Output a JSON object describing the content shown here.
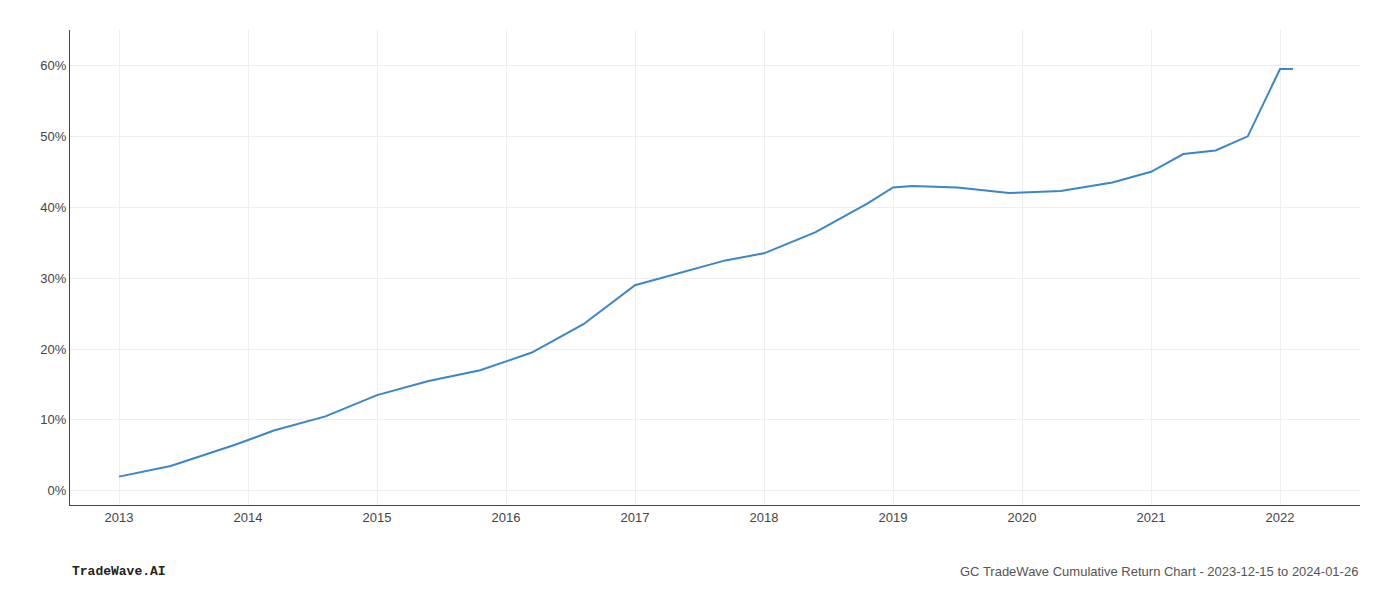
{
  "chart_data": {
    "type": "line",
    "x": [
      2013.0,
      2013.4,
      2013.9,
      2014.2,
      2014.6,
      2015.0,
      2015.4,
      2015.8,
      2016.2,
      2016.6,
      2017.0,
      2017.3,
      2017.7,
      2018.0,
      2018.4,
      2018.8,
      2019.0,
      2019.15,
      2019.5,
      2019.9,
      2020.3,
      2020.7,
      2021.0,
      2021.25,
      2021.5,
      2021.75,
      2022.0,
      2022.1
    ],
    "values": [
      2.0,
      3.5,
      6.5,
      8.5,
      10.5,
      13.5,
      15.5,
      17.0,
      19.5,
      23.5,
      29.0,
      30.5,
      32.5,
      33.5,
      36.5,
      40.5,
      42.8,
      43.0,
      42.8,
      42.0,
      42.3,
      43.5,
      45.0,
      47.5,
      48.0,
      50.0,
      59.5,
      59.5
    ],
    "color": "#3a86c8",
    "xlim": [
      2012.62,
      2022.62
    ],
    "xticks": [
      2013,
      2014,
      2015,
      2016,
      2017,
      2018,
      2019,
      2020,
      2021,
      2022
    ],
    "ylim": [
      -2,
      65
    ],
    "yticks": [
      {
        "value": 0,
        "label": "0%"
      },
      {
        "value": 10,
        "label": "10%"
      },
      {
        "value": 20,
        "label": "20%"
      },
      {
        "value": 30,
        "label": "30%"
      },
      {
        "value": 40,
        "label": "40%"
      },
      {
        "value": 50,
        "label": "50%"
      },
      {
        "value": 60,
        "label": "60%"
      }
    ],
    "grid": true,
    "annotations": [
      "TradeWave.AI",
      "GC TradeWave Cumulative Return Chart - 2023-12-15 to 2024-01-26"
    ]
  }
}
